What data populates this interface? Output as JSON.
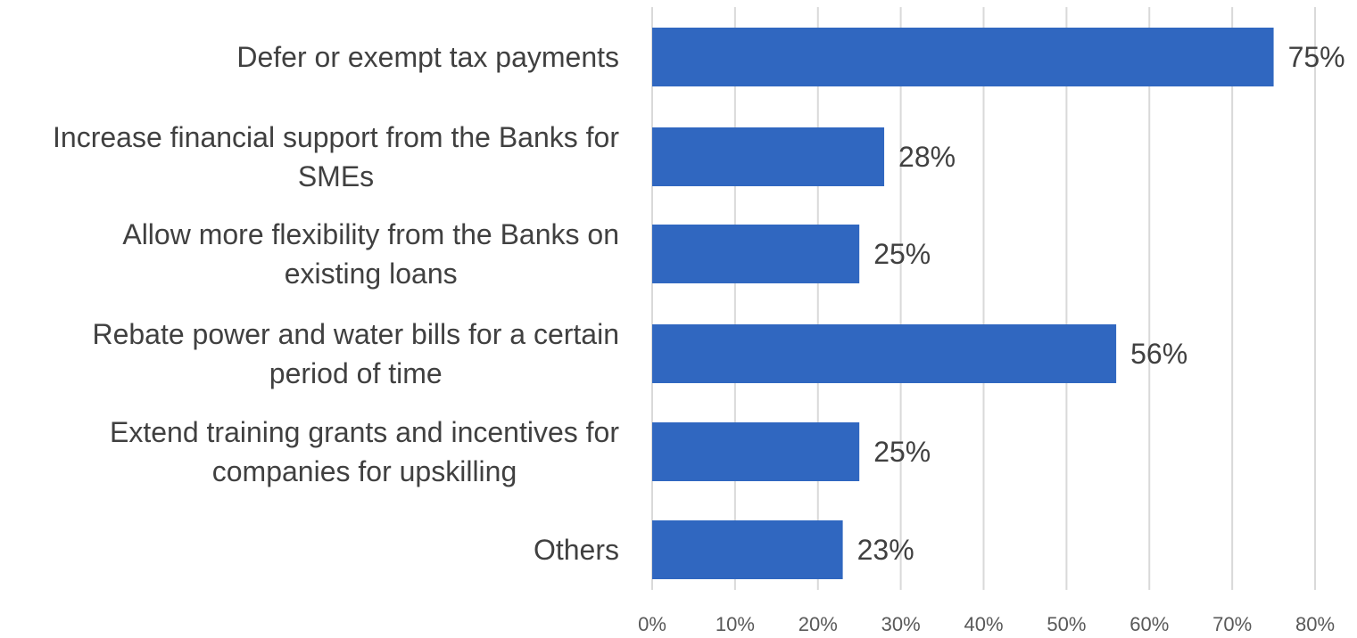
{
  "chart_data": {
    "type": "bar",
    "orientation": "horizontal",
    "categories": [
      "Defer or exempt tax payments",
      "Increase financial support from the Banks for SMEs",
      "Allow more flexibility from the Banks on existing loans",
      "Rebate power and water bills for a certain period of time",
      "Extend training grants and incentives for companies for upskilling",
      "Others"
    ],
    "category_lines": [
      [
        "Defer or exempt tax payments"
      ],
      [
        "Increase financial support from the Banks for",
        "SMEs"
      ],
      [
        "Allow more flexibility from the Banks on",
        "existing loans"
      ],
      [
        "Rebate power and water bills for a certain",
        "period of time"
      ],
      [
        "Extend training grants and incentives for",
        "companies for upskilling"
      ],
      [
        "Others"
      ]
    ],
    "values": [
      75,
      28,
      25,
      56,
      25,
      23
    ],
    "data_labels": [
      "75%",
      "28%",
      "25%",
      "56%",
      "25%",
      "23%"
    ],
    "xlim": [
      0,
      80
    ],
    "x_ticks": [
      0,
      10,
      20,
      30,
      40,
      50,
      60,
      70,
      80
    ],
    "x_tick_labels": [
      "0%",
      "10%",
      "20%",
      "30%",
      "40%",
      "50%",
      "60%",
      "70%",
      "80%"
    ],
    "grid": "vertical",
    "bar_color": "#3067C0",
    "title": "",
    "xlabel": "",
    "ylabel": "",
    "legend": "none"
  }
}
